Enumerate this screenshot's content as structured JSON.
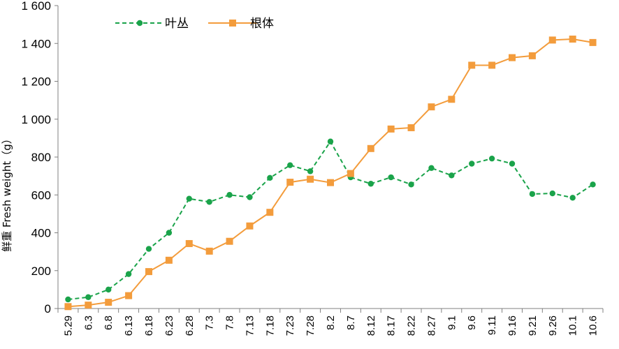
{
  "chart_data": {
    "type": "line",
    "ylabel": "鲜重 Fresh weight（g）",
    "xlabel": "",
    "ylim": [
      0,
      1600
    ],
    "y_ticks": [
      0,
      200,
      400,
      600,
      800,
      1000,
      1200,
      1400,
      1600
    ],
    "y_tick_labels": [
      "0",
      "200",
      "400",
      "600",
      "800",
      "1 000",
      "1 200",
      "1 400",
      "1 600"
    ],
    "grid": false,
    "legend_position": "top-left",
    "categories": [
      "5.29",
      "6.3",
      "6.8",
      "6.13",
      "6.18",
      "6.23",
      "6.28",
      "7.3",
      "7.8",
      "7.13",
      "7.18",
      "7.23",
      "7.28",
      "8.2",
      "8.7",
      "8.12",
      "8.17",
      "8.22",
      "8.27",
      "9.1",
      "9.6",
      "9.11",
      "9.16",
      "9.21",
      "9.26",
      "10.1",
      "10.6"
    ],
    "series": [
      {
        "name": "叶丛",
        "color": "#1aa34a",
        "style": "dashed",
        "marker": "circle",
        "values": [
          48,
          60,
          100,
          182,
          315,
          400,
          580,
          563,
          600,
          588,
          690,
          757,
          725,
          882,
          693,
          659,
          693,
          655,
          742,
          703,
          765,
          792,
          765,
          605,
          608,
          585,
          655
        ]
      },
      {
        "name": "根体",
        "color": "#f39c3c",
        "style": "solid",
        "marker": "square",
        "values": [
          10,
          18,
          33,
          68,
          195,
          255,
          343,
          303,
          355,
          436,
          508,
          667,
          683,
          665,
          713,
          845,
          948,
          955,
          1065,
          1105,
          1285,
          1285,
          1325,
          1335,
          1418,
          1423,
          1405
        ]
      }
    ]
  }
}
